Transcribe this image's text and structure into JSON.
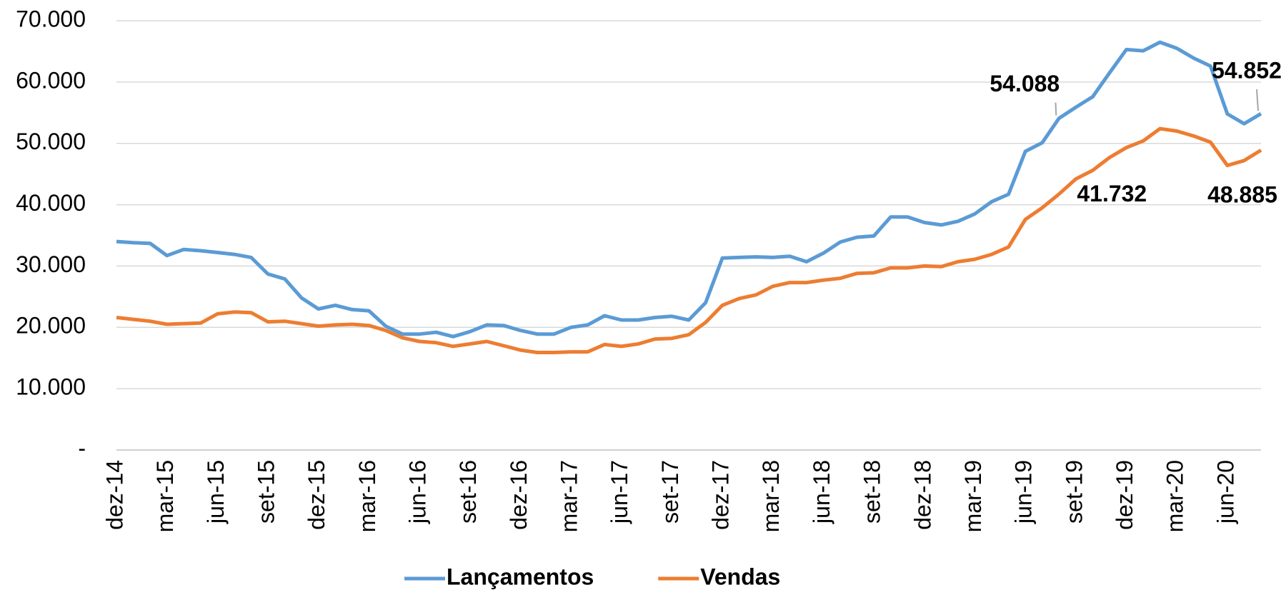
{
  "chart_data": {
    "type": "line",
    "categories": [
      "dez-14",
      null,
      null,
      "mar-15",
      null,
      null,
      "jun-15",
      null,
      null,
      "set-15",
      null,
      null,
      "dez-15",
      null,
      null,
      "mar-16",
      null,
      null,
      "jun-16",
      null,
      null,
      "set-16",
      null,
      null,
      "dez-16",
      null,
      null,
      "mar-17",
      null,
      null,
      "jun-17",
      null,
      null,
      "set-17",
      null,
      null,
      "dez-17",
      null,
      null,
      "mar-18",
      null,
      null,
      "jun-18",
      null,
      null,
      "set-18",
      null,
      null,
      "dez-18",
      null,
      null,
      "mar-19",
      null,
      null,
      "jun-19",
      null,
      null,
      "set-19",
      null,
      null,
      "dez-19",
      null,
      null,
      "mar-20",
      null,
      null,
      "jun-20",
      null,
      null
    ],
    "series": [
      {
        "name": "Lançamentos",
        "color": "#5b9bd5",
        "values": [
          34000,
          33800,
          33700,
          31700,
          32700,
          32500,
          32200,
          31900,
          31400,
          28700,
          27900,
          24800,
          23000,
          23600,
          22900,
          22700,
          20200,
          18900,
          18900,
          19200,
          18500,
          19300,
          20400,
          20300,
          19500,
          18900,
          18900,
          20000,
          20400,
          21900,
          21200,
          21200,
          21600,
          21800,
          21200,
          24000,
          31300,
          31400,
          31500,
          31400,
          31600,
          30700,
          32100,
          33900,
          34700,
          34900,
          38000,
          38000,
          37100,
          36700,
          37300,
          38500,
          40500,
          41700,
          48700,
          50100,
          54088,
          55900,
          57600,
          61500,
          65300,
          65100,
          66500,
          65500,
          63900,
          62600,
          54800,
          53200,
          54852
        ],
        "value_labels": [
          null,
          null,
          null,
          null,
          null,
          null,
          null,
          null,
          null,
          null,
          null,
          null,
          null,
          null,
          null,
          null,
          null,
          null,
          null,
          null,
          null,
          null,
          null,
          null,
          null,
          null,
          null,
          null,
          null,
          null,
          null,
          null,
          null,
          null,
          null,
          null,
          null,
          null,
          null,
          null,
          null,
          null,
          null,
          null,
          null,
          null,
          null,
          null,
          null,
          null,
          null,
          null,
          null,
          null,
          null,
          null,
          "54.088",
          null,
          null,
          null,
          null,
          null,
          null,
          null,
          null,
          null,
          null,
          null,
          "54.852"
        ]
      },
      {
        "name": "Vendas",
        "color": "#ed7d31",
        "values": [
          21600,
          21300,
          21000,
          20500,
          20600,
          20700,
          22200,
          22500,
          22400,
          20900,
          21000,
          20600,
          20200,
          20400,
          20500,
          20300,
          19500,
          18300,
          17700,
          17500,
          16900,
          17300,
          17700,
          17000,
          16300,
          15900,
          15900,
          16000,
          16000,
          17200,
          16900,
          17300,
          18100,
          18200,
          18800,
          20800,
          23600,
          24700,
          25300,
          26700,
          27300,
          27300,
          27700,
          28000,
          28800,
          28900,
          29700,
          29700,
          30000,
          29900,
          30700,
          31100,
          31900,
          33100,
          37600,
          39500,
          41732,
          44200,
          45600,
          47700,
          49300,
          50400,
          52400,
          52000,
          51200,
          50200,
          46400,
          47200,
          48885
        ],
        "value_labels": [
          null,
          null,
          null,
          null,
          null,
          null,
          null,
          null,
          null,
          null,
          null,
          null,
          null,
          null,
          null,
          null,
          null,
          null,
          null,
          null,
          null,
          null,
          null,
          null,
          null,
          null,
          null,
          null,
          null,
          null,
          null,
          null,
          null,
          null,
          null,
          null,
          null,
          null,
          null,
          null,
          null,
          null,
          null,
          null,
          null,
          null,
          null,
          null,
          null,
          null,
          null,
          null,
          null,
          null,
          null,
          null,
          "41.732",
          null,
          null,
          null,
          null,
          null,
          null,
          null,
          null,
          null,
          null,
          null,
          "48.885"
        ]
      }
    ],
    "ylim": [
      0,
      70000
    ],
    "yticks": [
      {
        "value": 0,
        "label": "-"
      },
      {
        "value": 10000,
        "label": "10.000"
      },
      {
        "value": 20000,
        "label": "20.000"
      },
      {
        "value": 30000,
        "label": "30.000"
      },
      {
        "value": 40000,
        "label": "40.000"
      },
      {
        "value": 50000,
        "label": "50.000"
      },
      {
        "value": 60000,
        "label": "60.000"
      },
      {
        "value": 70000,
        "label": "70.000"
      }
    ],
    "grid": true,
    "legend": "bottom"
  }
}
